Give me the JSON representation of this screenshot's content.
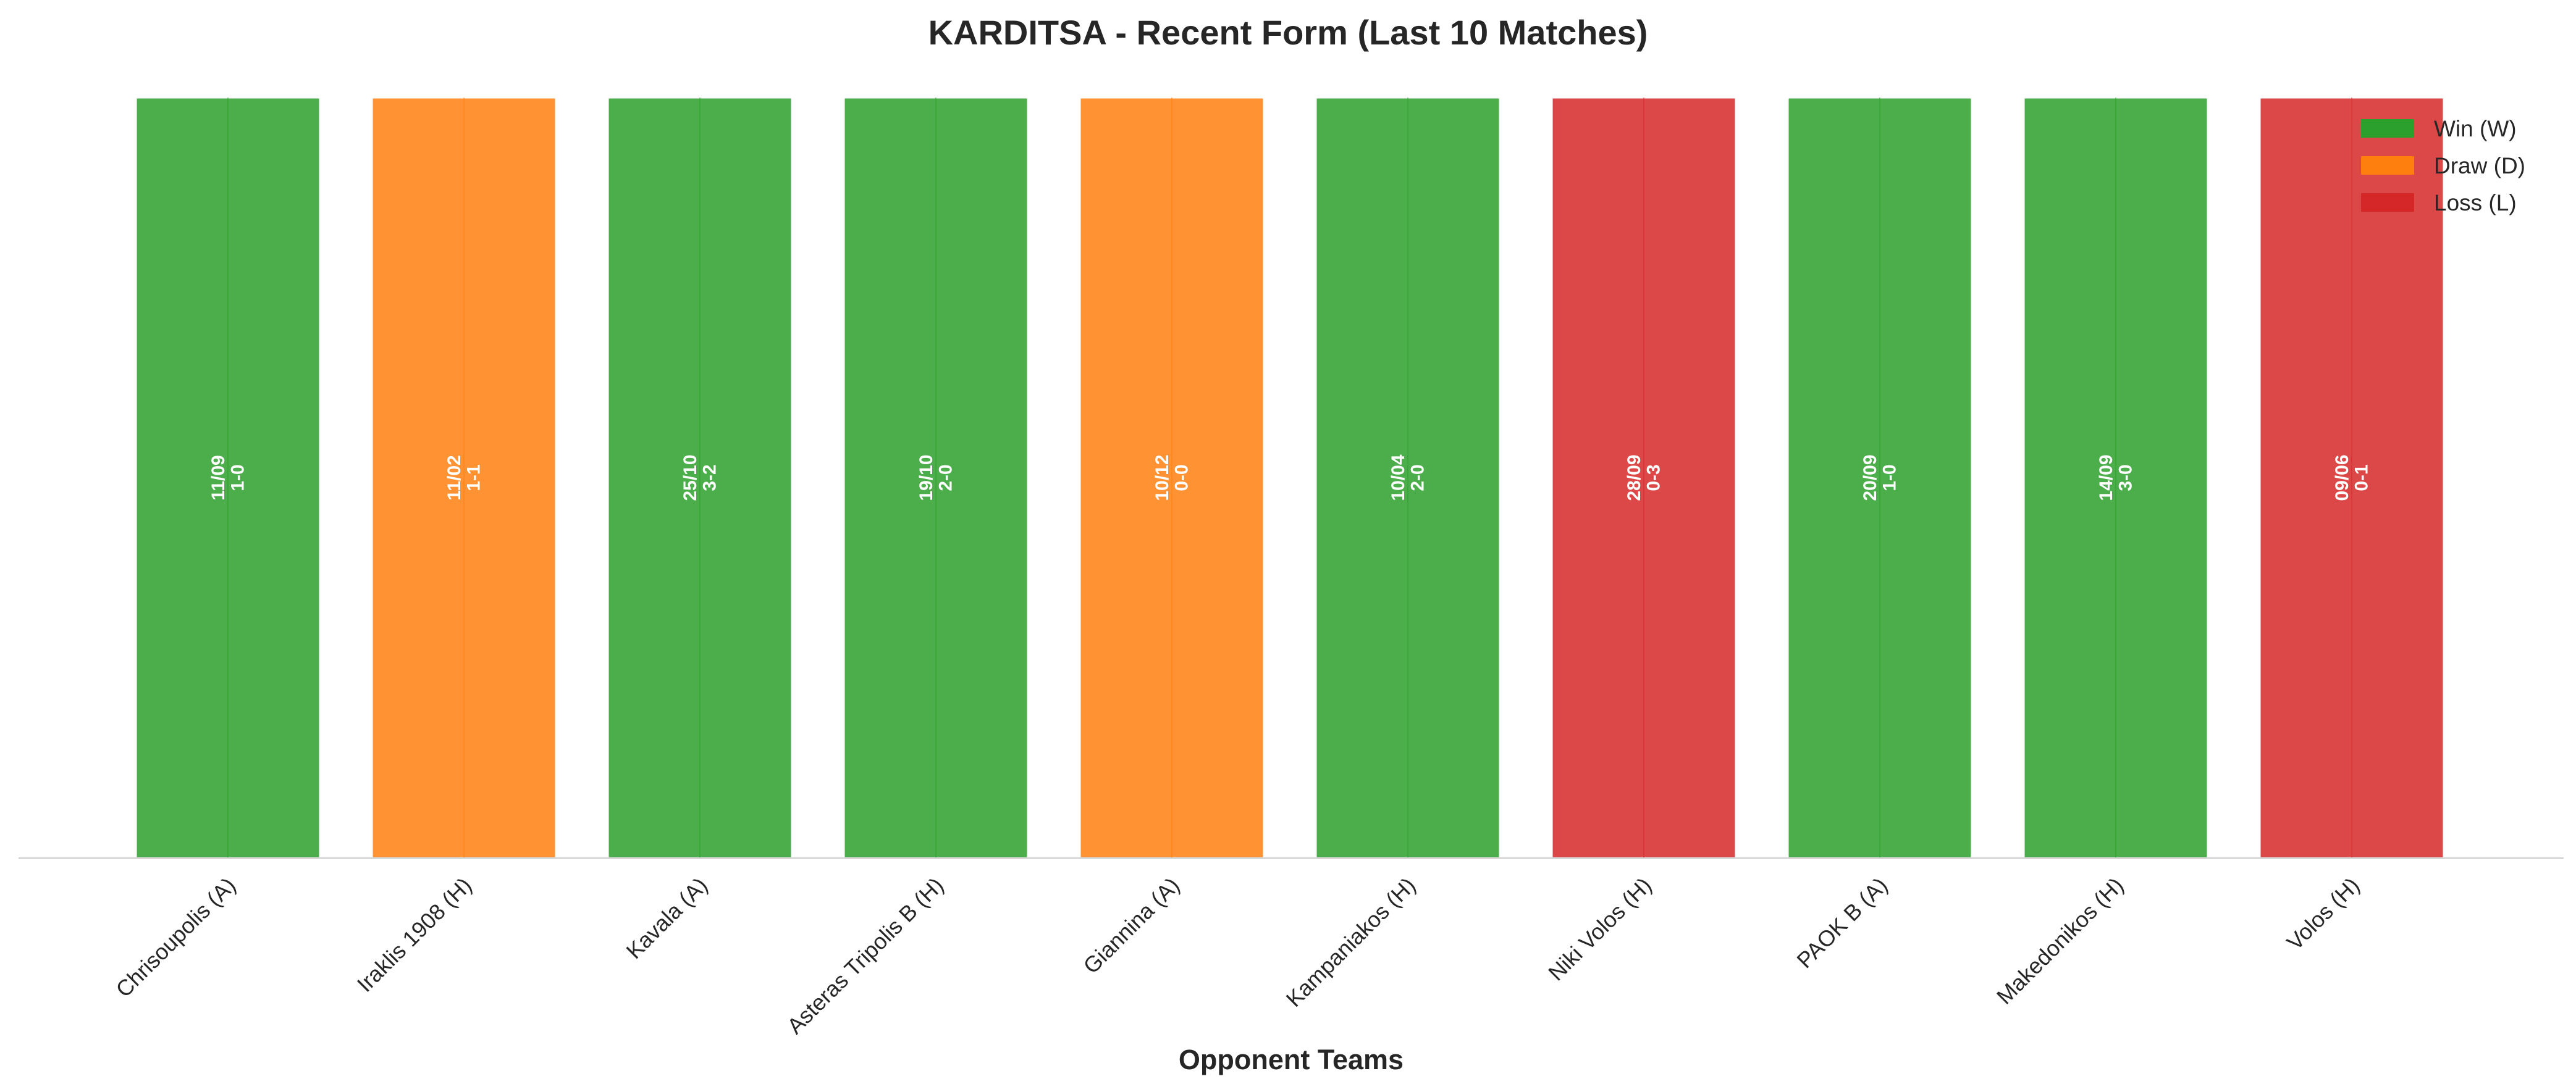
{
  "chart_data": {
    "type": "bar",
    "title": "KARDITSA - Recent Form (Last 10 Matches)",
    "xlabel": "Opponent Teams",
    "ylabel": "",
    "ylim": [
      0,
      1
    ],
    "grid": false,
    "legend_position": "top-right",
    "categories": [
      "Chrisoupolis (A)",
      "Iraklis 1908 (H)",
      "Kavala (A)",
      "Asteras Tripolis B (H)",
      "Giannina (A)",
      "Kampaniakos (H)",
      "Niki Volos (H)",
      "PAOK B (A)",
      "Makedonikos (H)",
      "Volos (H)"
    ],
    "values": [
      1,
      1,
      1,
      1,
      1,
      1,
      1,
      1,
      1,
      1
    ],
    "results": [
      "W",
      "D",
      "W",
      "W",
      "D",
      "W",
      "L",
      "W",
      "W",
      "L"
    ],
    "dates": [
      "11/09",
      "11/02",
      "25/10",
      "19/10",
      "10/12",
      "10/04",
      "28/09",
      "20/09",
      "14/09",
      "09/06"
    ],
    "scores": [
      "1-0",
      "1-1",
      "3-2",
      "2-0",
      "0-0",
      "2-0",
      "0-3",
      "1-0",
      "3-0",
      "0-1"
    ],
    "result_colors": {
      "W": "#2ca02c",
      "D": "#ff7f0e",
      "L": "#d62728"
    },
    "legend": [
      {
        "key": "W",
        "label": "Win (W)"
      },
      {
        "key": "D",
        "label": "Draw (D)"
      },
      {
        "key": "L",
        "label": "Loss (L)"
      }
    ]
  }
}
